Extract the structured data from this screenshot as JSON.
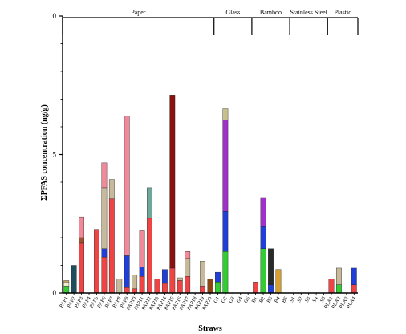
{
  "chart_data": {
    "type": "bar",
    "stacked": true,
    "title": "",
    "xlabel": "Straws",
    "ylabel": "ΣPFAS concentration (ng/g)",
    "ylim": [
      0,
      10
    ],
    "yticks": [
      0,
      5,
      10
    ],
    "grid": false,
    "legend": "none",
    "groups": [
      {
        "name": "Paper",
        "start": "PAP1",
        "end": "PAP20"
      },
      {
        "name": "Glass",
        "start": "G1",
        "end": "G5"
      },
      {
        "name": "Bamboo",
        "start": "B1",
        "end": "B5"
      },
      {
        "name": "Stainless Steel",
        "start": "S1",
        "end": "S5"
      },
      {
        "name": "Plastic",
        "start": "PLA1",
        "end": "PLA4"
      }
    ],
    "categories": [
      "PAP1",
      "PAP2",
      "PAP3",
      "PAP4",
      "PAP5",
      "PAP6",
      "PAP7",
      "PAP8",
      "PAP9",
      "PAP10",
      "PAP11",
      "PAP12",
      "PAP13",
      "PAP14",
      "PAP15",
      "PAP16",
      "PAP17",
      "PAP18",
      "PAP19",
      "PAP20",
      "G1",
      "G2",
      "G3",
      "G4",
      "G5",
      "B1",
      "B2",
      "B3",
      "B4",
      "B5",
      "S1",
      "S2",
      "S3",
      "S4",
      "S5",
      "PLA1",
      "PLA2",
      "PLA3",
      "PLA4"
    ],
    "stacks": [
      [
        {
          "v": 0.25,
          "c": "#33cc33"
        },
        {
          "v": 0.15,
          "c": "#f2efc8"
        },
        {
          "v": 0.05,
          "c": "#c8a45a"
        }
      ],
      [
        {
          "v": 1.0,
          "c": "#1e4d5c"
        }
      ],
      [
        {
          "v": 1.8,
          "c": "#ee4444"
        },
        {
          "v": 0.2,
          "c": "#a0522d"
        },
        {
          "v": 0.75,
          "c": "#f08a9a"
        }
      ],
      [],
      [
        {
          "v": 2.3,
          "c": "#ee4444"
        }
      ],
      [
        {
          "v": 1.3,
          "c": "#ee4444"
        },
        {
          "v": 0.3,
          "c": "#1f3fd8"
        },
        {
          "v": 2.2,
          "c": "#c8b99a"
        },
        {
          "v": 0.9,
          "c": "#f08a9a"
        }
      ],
      [
        {
          "v": 3.4,
          "c": "#ee4444"
        },
        {
          "v": 0.7,
          "c": "#c8b99a"
        }
      ],
      [
        {
          "v": 0.5,
          "c": "#c8b99a"
        }
      ],
      [
        {
          "v": 0.2,
          "c": "#ee4444"
        },
        {
          "v": 1.15,
          "c": "#1f3fd8"
        },
        {
          "v": 5.05,
          "c": "#f08a9a"
        }
      ],
      [
        {
          "v": 0.15,
          "c": "#ee4444"
        },
        {
          "v": 0.5,
          "c": "#c8b99a"
        }
      ],
      [
        {
          "v": 0.6,
          "c": "#ee4444"
        },
        {
          "v": 0.35,
          "c": "#1f3fd8"
        },
        {
          "v": 1.3,
          "c": "#f08a9a"
        }
      ],
      [
        {
          "v": 2.7,
          "c": "#ee4444"
        },
        {
          "v": 1.1,
          "c": "#6fa89a"
        }
      ],
      [
        {
          "v": 0.5,
          "c": "#ee4444"
        }
      ],
      [
        {
          "v": 0.35,
          "c": "#ee4444"
        },
        {
          "v": 0.5,
          "c": "#1f3fd8"
        }
      ],
      [
        {
          "v": 0.9,
          "c": "#ee4444"
        },
        {
          "v": 6.25,
          "c": "#8b1010"
        }
      ],
      [
        {
          "v": 0.45,
          "c": "#ee4444"
        },
        {
          "v": 0.1,
          "c": "#c8b99a"
        }
      ],
      [
        {
          "v": 0.6,
          "c": "#ee4444"
        },
        {
          "v": 0.65,
          "c": "#c8b99a"
        },
        {
          "v": 0.25,
          "c": "#f08a9a"
        }
      ],
      [],
      [
        {
          "v": 0.25,
          "c": "#ee4444"
        },
        {
          "v": 0.9,
          "c": "#c8b99a"
        }
      ],
      [
        {
          "v": 0.5,
          "c": "#8b4513"
        }
      ],
      [
        {
          "v": 0.4,
          "c": "#33cc33"
        },
        {
          "v": 0.35,
          "c": "#1f3fd8"
        }
      ],
      [
        {
          "v": 1.5,
          "c": "#33cc33"
        },
        {
          "v": 1.45,
          "c": "#1f3fd8"
        },
        {
          "v": 3.3,
          "c": "#a030c8"
        },
        {
          "v": 0.4,
          "c": "#c8c08a"
        }
      ],
      [],
      [],
      [],
      [
        {
          "v": 0.4,
          "c": "#ee4444"
        }
      ],
      [
        {
          "v": 1.6,
          "c": "#33cc33"
        },
        {
          "v": 0.8,
          "c": "#1f3fd8"
        },
        {
          "v": 1.05,
          "c": "#a030c8"
        }
      ],
      [
        {
          "v": 0.3,
          "c": "#1f3fd8"
        },
        {
          "v": 1.3,
          "c": "#2a2a2a"
        }
      ],
      [
        {
          "v": 0.85,
          "c": "#d9a030"
        }
      ],
      [],
      [],
      [],
      [],
      [],
      [],
      [
        {
          "v": 0.5,
          "c": "#ee4444"
        }
      ],
      [
        {
          "v": 0.3,
          "c": "#33cc33"
        },
        {
          "v": 0.6,
          "c": "#c8b99a"
        }
      ],
      [],
      [
        {
          "v": 0.3,
          "c": "#ee4444"
        },
        {
          "v": 0.6,
          "c": "#1f3fd8"
        }
      ]
    ]
  }
}
